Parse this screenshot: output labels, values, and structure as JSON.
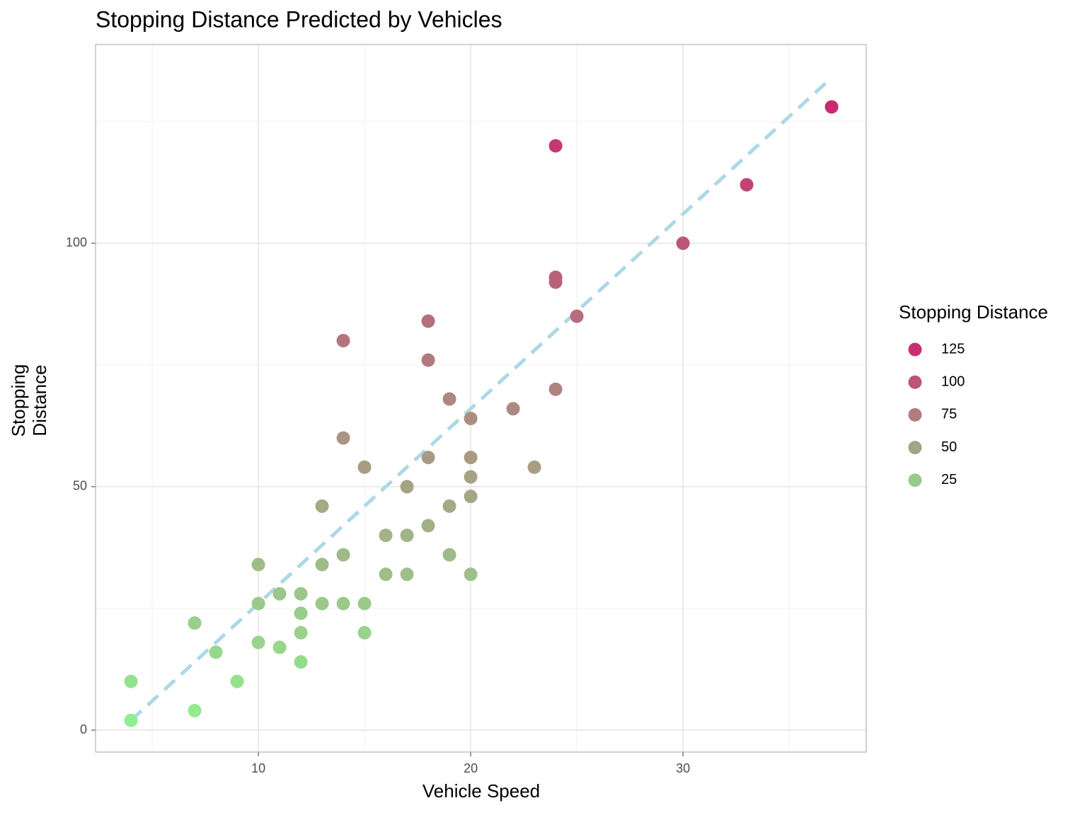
{
  "chart_data": {
    "type": "scatter",
    "title": "Stopping Distance Predicted by Vehicles",
    "x_label": "Vehicle Speed",
    "y_label": [
      "Stopping",
      "Distance"
    ],
    "x": [
      4,
      4,
      7,
      7,
      8,
      9,
      10,
      10,
      10,
      11,
      11,
      12,
      12,
      12,
      12,
      13,
      13,
      13,
      14,
      14,
      14,
      14,
      15,
      15,
      15,
      16,
      16,
      17,
      17,
      17,
      18,
      18,
      18,
      18,
      19,
      19,
      19,
      20,
      20,
      20,
      20,
      20,
      22,
      23,
      24,
      24,
      24,
      24,
      25,
      30,
      33,
      37
    ],
    "values": [
      10,
      2,
      22,
      4,
      16,
      10,
      34,
      26,
      18,
      28,
      17,
      28,
      24,
      20,
      14,
      46,
      34,
      26,
      80,
      60,
      36,
      26,
      54,
      26,
      20,
      40,
      32,
      50,
      40,
      32,
      84,
      76,
      56,
      42,
      68,
      46,
      36,
      64,
      56,
      52,
      48,
      32,
      66,
      54,
      120,
      93,
      92,
      70,
      85,
      100,
      112,
      128
    ],
    "color_scale": {
      "low": "#90ee90",
      "high": "#c92a72"
    },
    "legend": {
      "title": "Stopping Distance",
      "breaks": [
        125,
        100,
        75,
        50,
        25
      ]
    },
    "trend_line": {
      "x": [
        4,
        37
      ],
      "y": [
        2,
        134
      ],
      "color": "#add8e6"
    },
    "xlim": [
      2.33,
      38.63
    ],
    "xticks": [
      10,
      20,
      30
    ],
    "x_minor_ticks": [
      5,
      15,
      25,
      35
    ],
    "ylim": [
      -4.5,
      140.8
    ],
    "yticks": [
      0,
      50,
      100
    ],
    "y_minor_ticks": [
      25,
      75,
      125
    ],
    "grid": true
  }
}
